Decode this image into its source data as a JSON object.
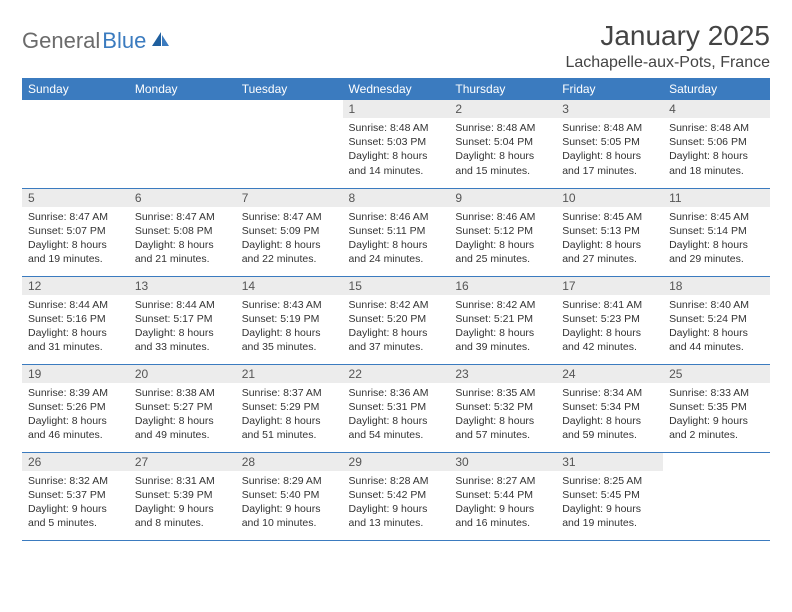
{
  "brand": {
    "part1": "General",
    "part2": "Blue"
  },
  "title": "January 2025",
  "location": "Lachapelle-aux-Pots, France",
  "colors": {
    "header_bg": "#3b7bbf",
    "header_text": "#ffffff",
    "daynum_bg": "#ececec",
    "row_border": "#3b7bbf",
    "brand_gray": "#6b6b6b",
    "brand_blue": "#3b7bbf"
  },
  "weekdays": [
    "Sunday",
    "Monday",
    "Tuesday",
    "Wednesday",
    "Thursday",
    "Friday",
    "Saturday"
  ],
  "leading_blanks": 3,
  "days": [
    {
      "n": 1,
      "sunrise": "8:48 AM",
      "sunset": "5:03 PM",
      "daylight": "8 hours and 14 minutes."
    },
    {
      "n": 2,
      "sunrise": "8:48 AM",
      "sunset": "5:04 PM",
      "daylight": "8 hours and 15 minutes."
    },
    {
      "n": 3,
      "sunrise": "8:48 AM",
      "sunset": "5:05 PM",
      "daylight": "8 hours and 17 minutes."
    },
    {
      "n": 4,
      "sunrise": "8:48 AM",
      "sunset": "5:06 PM",
      "daylight": "8 hours and 18 minutes."
    },
    {
      "n": 5,
      "sunrise": "8:47 AM",
      "sunset": "5:07 PM",
      "daylight": "8 hours and 19 minutes."
    },
    {
      "n": 6,
      "sunrise": "8:47 AM",
      "sunset": "5:08 PM",
      "daylight": "8 hours and 21 minutes."
    },
    {
      "n": 7,
      "sunrise": "8:47 AM",
      "sunset": "5:09 PM",
      "daylight": "8 hours and 22 minutes."
    },
    {
      "n": 8,
      "sunrise": "8:46 AM",
      "sunset": "5:11 PM",
      "daylight": "8 hours and 24 minutes."
    },
    {
      "n": 9,
      "sunrise": "8:46 AM",
      "sunset": "5:12 PM",
      "daylight": "8 hours and 25 minutes."
    },
    {
      "n": 10,
      "sunrise": "8:45 AM",
      "sunset": "5:13 PM",
      "daylight": "8 hours and 27 minutes."
    },
    {
      "n": 11,
      "sunrise": "8:45 AM",
      "sunset": "5:14 PM",
      "daylight": "8 hours and 29 minutes."
    },
    {
      "n": 12,
      "sunrise": "8:44 AM",
      "sunset": "5:16 PM",
      "daylight": "8 hours and 31 minutes."
    },
    {
      "n": 13,
      "sunrise": "8:44 AM",
      "sunset": "5:17 PM",
      "daylight": "8 hours and 33 minutes."
    },
    {
      "n": 14,
      "sunrise": "8:43 AM",
      "sunset": "5:19 PM",
      "daylight": "8 hours and 35 minutes."
    },
    {
      "n": 15,
      "sunrise": "8:42 AM",
      "sunset": "5:20 PM",
      "daylight": "8 hours and 37 minutes."
    },
    {
      "n": 16,
      "sunrise": "8:42 AM",
      "sunset": "5:21 PM",
      "daylight": "8 hours and 39 minutes."
    },
    {
      "n": 17,
      "sunrise": "8:41 AM",
      "sunset": "5:23 PM",
      "daylight": "8 hours and 42 minutes."
    },
    {
      "n": 18,
      "sunrise": "8:40 AM",
      "sunset": "5:24 PM",
      "daylight": "8 hours and 44 minutes."
    },
    {
      "n": 19,
      "sunrise": "8:39 AM",
      "sunset": "5:26 PM",
      "daylight": "8 hours and 46 minutes."
    },
    {
      "n": 20,
      "sunrise": "8:38 AM",
      "sunset": "5:27 PM",
      "daylight": "8 hours and 49 minutes."
    },
    {
      "n": 21,
      "sunrise": "8:37 AM",
      "sunset": "5:29 PM",
      "daylight": "8 hours and 51 minutes."
    },
    {
      "n": 22,
      "sunrise": "8:36 AM",
      "sunset": "5:31 PM",
      "daylight": "8 hours and 54 minutes."
    },
    {
      "n": 23,
      "sunrise": "8:35 AM",
      "sunset": "5:32 PM",
      "daylight": "8 hours and 57 minutes."
    },
    {
      "n": 24,
      "sunrise": "8:34 AM",
      "sunset": "5:34 PM",
      "daylight": "8 hours and 59 minutes."
    },
    {
      "n": 25,
      "sunrise": "8:33 AM",
      "sunset": "5:35 PM",
      "daylight": "9 hours and 2 minutes."
    },
    {
      "n": 26,
      "sunrise": "8:32 AM",
      "sunset": "5:37 PM",
      "daylight": "9 hours and 5 minutes."
    },
    {
      "n": 27,
      "sunrise": "8:31 AM",
      "sunset": "5:39 PM",
      "daylight": "9 hours and 8 minutes."
    },
    {
      "n": 28,
      "sunrise": "8:29 AM",
      "sunset": "5:40 PM",
      "daylight": "9 hours and 10 minutes."
    },
    {
      "n": 29,
      "sunrise": "8:28 AM",
      "sunset": "5:42 PM",
      "daylight": "9 hours and 13 minutes."
    },
    {
      "n": 30,
      "sunrise": "8:27 AM",
      "sunset": "5:44 PM",
      "daylight": "9 hours and 16 minutes."
    },
    {
      "n": 31,
      "sunrise": "8:25 AM",
      "sunset": "5:45 PM",
      "daylight": "9 hours and 19 minutes."
    }
  ],
  "labels": {
    "sunrise": "Sunrise:",
    "sunset": "Sunset:",
    "daylight": "Daylight:"
  }
}
